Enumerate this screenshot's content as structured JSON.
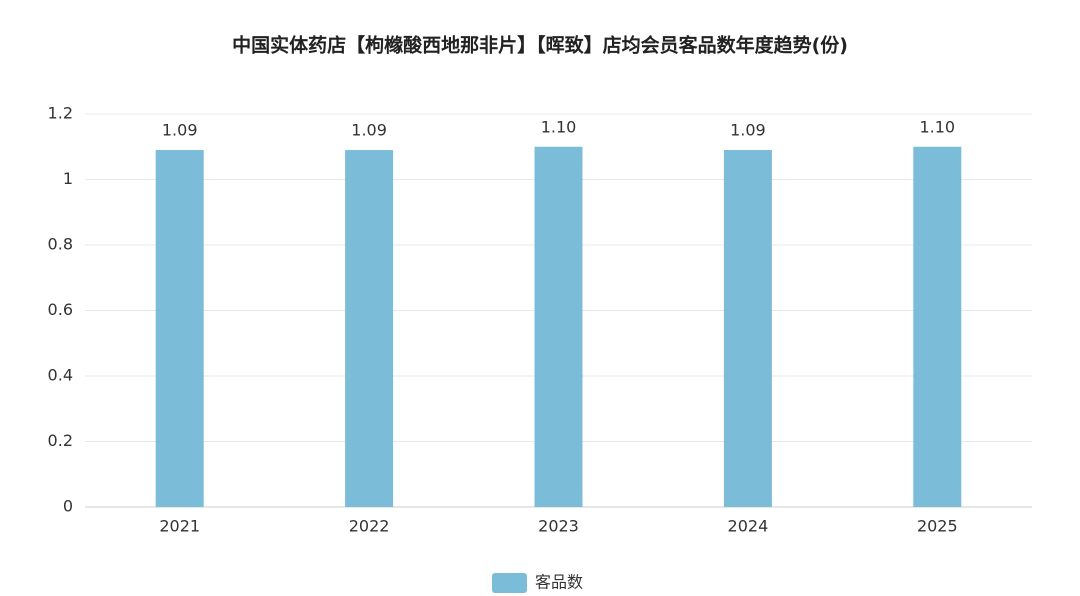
{
  "chart_data": {
    "type": "bar",
    "title": "中国实体药店【枸橼酸西地那非片】【晖致】店均会员客品数年度趋势(份)",
    "categories": [
      "2021",
      "2022",
      "2023",
      "2024",
      "2025"
    ],
    "series": [
      {
        "name": "客品数",
        "color": "#7bbcd9",
        "values": [
          1.09,
          1.09,
          1.1,
          1.09,
          1.1
        ],
        "value_labels": [
          "1.09",
          "1.09",
          "1.10",
          "1.09",
          "1.10"
        ]
      }
    ],
    "ylim": [
      0,
      1.2
    ],
    "yticks": [
      0,
      0.2,
      0.4,
      0.6,
      0.8,
      1,
      1.2
    ],
    "grid": true,
    "legend": "bottom"
  }
}
